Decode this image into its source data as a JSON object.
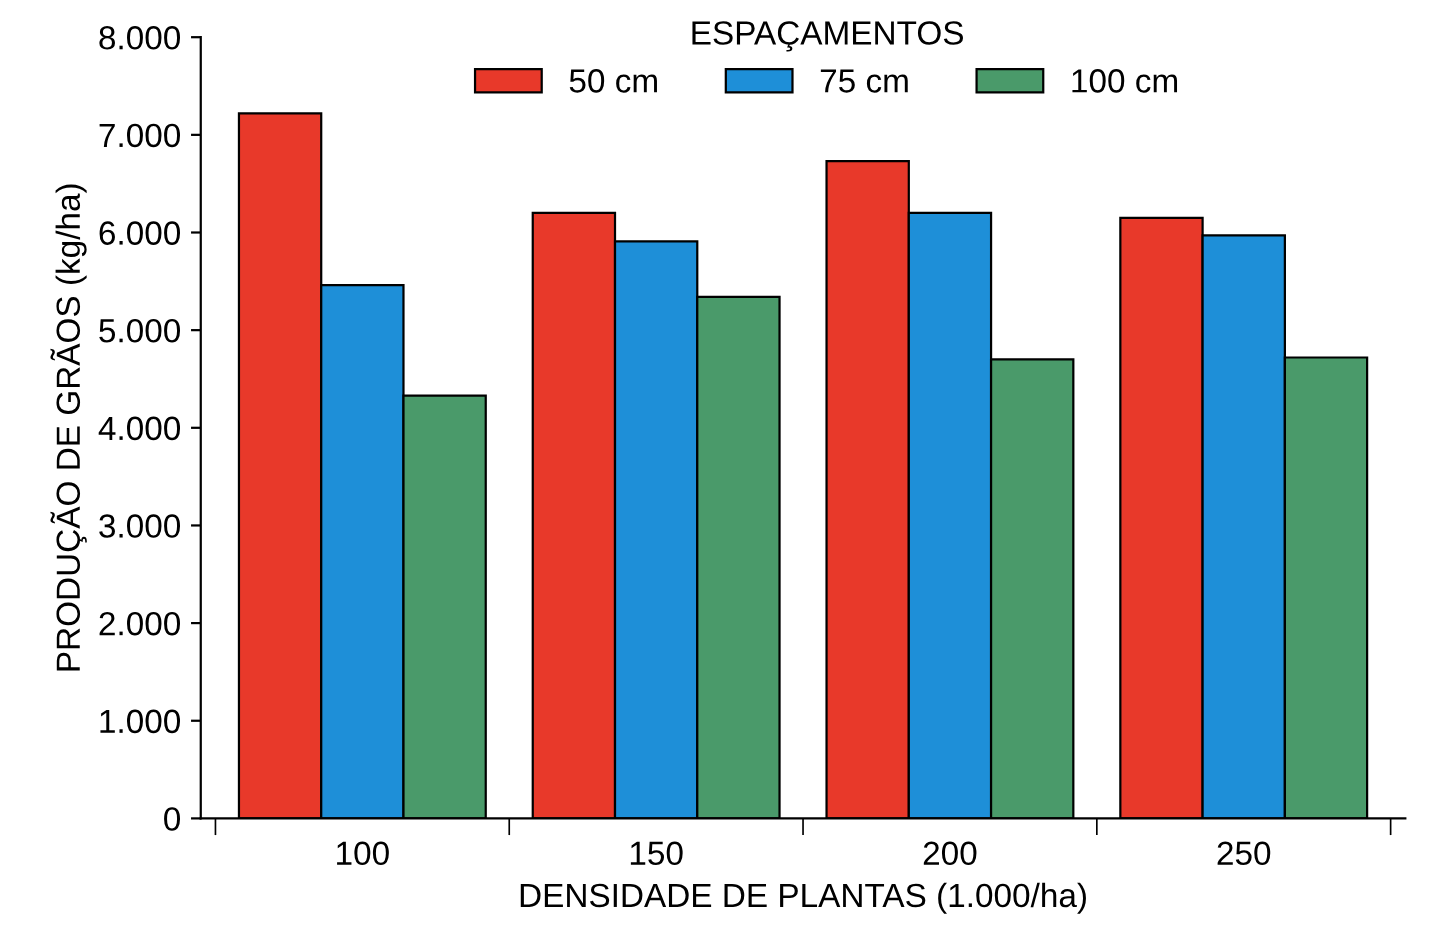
{
  "chart_data": {
    "type": "bar",
    "xlabel": "DENSIDADE DE PLANTAS (1.000/ha)",
    "ylabel": "PRODUÇÃO DE GRÃOS (kg/ha)",
    "legend_title": "ESPAÇAMENTOS",
    "legend": "top",
    "grid": false,
    "categories": [
      "100",
      "150",
      "200",
      "250"
    ],
    "series": [
      {
        "name": "50 cm",
        "color": "#e8392a",
        "values": [
          7220,
          6200,
          6730,
          6150
        ]
      },
      {
        "name": "75 cm",
        "color": "#1e8fd8",
        "values": [
          5460,
          5910,
          6200,
          5970
        ]
      },
      {
        "name": "100 cm",
        "color": "#4a9a6a",
        "values": [
          4330,
          5340,
          4700,
          4720
        ]
      }
    ],
    "ylim": [
      0,
      8000
    ],
    "yticks": [
      0,
      {
        "value": 1000,
        "label": "1.000"
      },
      {
        "value": 2000,
        "label": "2.000"
      },
      {
        "value": 3000,
        "label": "3.000"
      },
      {
        "value": 4000,
        "label": "4.000"
      },
      {
        "value": 5000,
        "label": "5.000"
      },
      {
        "value": 6000,
        "label": "6.000"
      },
      {
        "value": 7000,
        "label": "7.000"
      },
      {
        "value": 8000,
        "label": "8.000"
      }
    ]
  }
}
